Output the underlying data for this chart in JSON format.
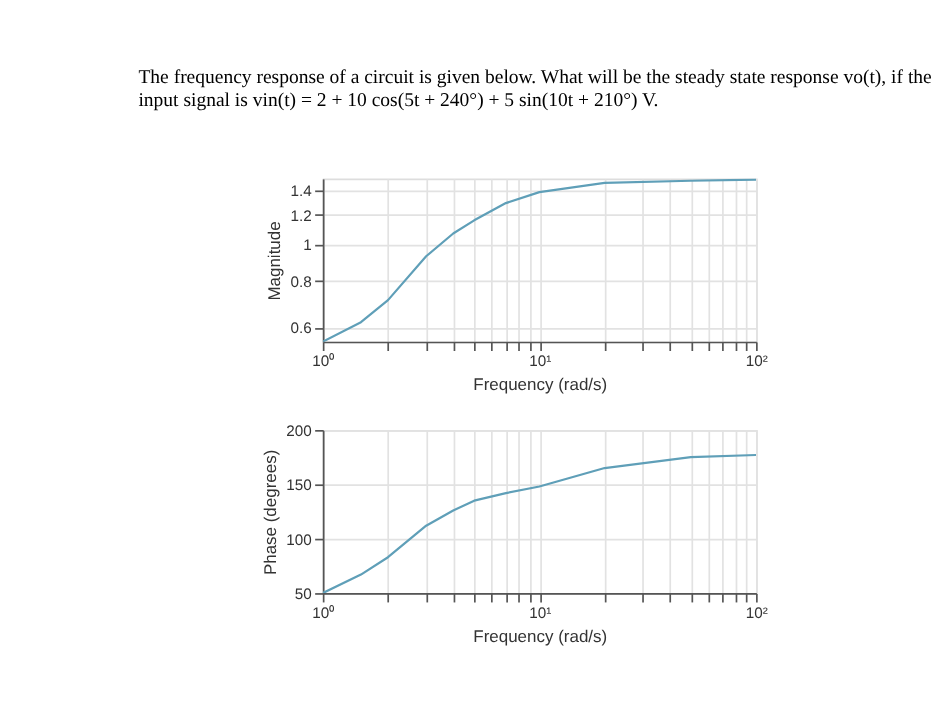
{
  "chart_data": [
    {
      "type": "line",
      "title": "The frequency response of a circuit is given below. What will be the steady state response  vo(t), if the\ninput signal is vin(t) = 2 + 10 cos(5t + 240°) + 5 sin(10t + 210°) V.",
      "xlabel": "Frequency (rad/s)",
      "ylabel": "Magnitude",
      "log": "xy",
      "grid": true,
      "x": [
        1,
        1.5,
        2,
        3,
        4,
        5,
        7,
        10,
        20,
        50,
        100
      ],
      "series": [
        {
          "color": "#5f9fb8",
          "values": [
            0.55,
            0.62,
            0.71,
            0.93,
            1.07,
            1.16,
            1.29,
            1.38,
            1.46,
            1.48,
            1.49
          ]
        }
      ],
      "xlim": [
        1,
        100
      ],
      "ylim": [
        0.55,
        1.5
      ],
      "xticks": [
        {
          "value": 1,
          "label": "10⁰"
        },
        {
          "value": 2,
          "label": null
        },
        {
          "value": 3,
          "label": null
        },
        {
          "value": 4,
          "label": null
        },
        {
          "value": 5,
          "label": null
        },
        {
          "value": 6,
          "label": null
        },
        {
          "value": 7,
          "label": null
        },
        {
          "value": 8,
          "label": null
        },
        {
          "value": 9,
          "label": null
        },
        {
          "value": 10,
          "label": "10¹"
        },
        {
          "value": 20,
          "label": null
        },
        {
          "value": 30,
          "label": null
        },
        {
          "value": 40,
          "label": null
        },
        {
          "value": 50,
          "label": null
        },
        {
          "value": 60,
          "label": null
        },
        {
          "value": 70,
          "label": null
        },
        {
          "value": 80,
          "label": null
        },
        {
          "value": 90,
          "label": null
        },
        {
          "value": 100,
          "label": "10²"
        }
      ],
      "yticks": [
        0.6,
        0.8,
        1,
        1.2,
        1.4
      ]
    },
    {
      "type": "line",
      "xlabel": "Frequency (rad/s)",
      "ylabel": "Phase (degrees)",
      "log": "x",
      "grid": true,
      "x": [
        1,
        1.5,
        2,
        3,
        4,
        5,
        7,
        10,
        20,
        50,
        100
      ],
      "series": [
        {
          "color": "#5f9fb8",
          "values": [
            50,
            67,
            83,
            112,
            126,
            135,
            142,
            148,
            165,
            175,
            177
          ]
        }
      ],
      "xlim": [
        1,
        100
      ],
      "ylim": [
        50,
        200
      ],
      "xticks": [
        {
          "value": 1,
          "label": "10⁰"
        },
        {
          "value": 2,
          "label": null
        },
        {
          "value": 3,
          "label": null
        },
        {
          "value": 4,
          "label": null
        },
        {
          "value": 5,
          "label": null
        },
        {
          "value": 6,
          "label": null
        },
        {
          "value": 7,
          "label": null
        },
        {
          "value": 8,
          "label": null
        },
        {
          "value": 9,
          "label": null
        },
        {
          "value": 10,
          "label": "10¹"
        },
        {
          "value": 20,
          "label": null
        },
        {
          "value": 30,
          "label": null
        },
        {
          "value": 40,
          "label": null
        },
        {
          "value": 50,
          "label": null
        },
        {
          "value": 60,
          "label": null
        },
        {
          "value": 70,
          "label": null
        },
        {
          "value": 80,
          "label": null
        },
        {
          "value": 90,
          "label": null
        },
        {
          "value": 100,
          "label": "10²"
        }
      ],
      "yticks": [
        50,
        100,
        150,
        200
      ]
    }
  ]
}
